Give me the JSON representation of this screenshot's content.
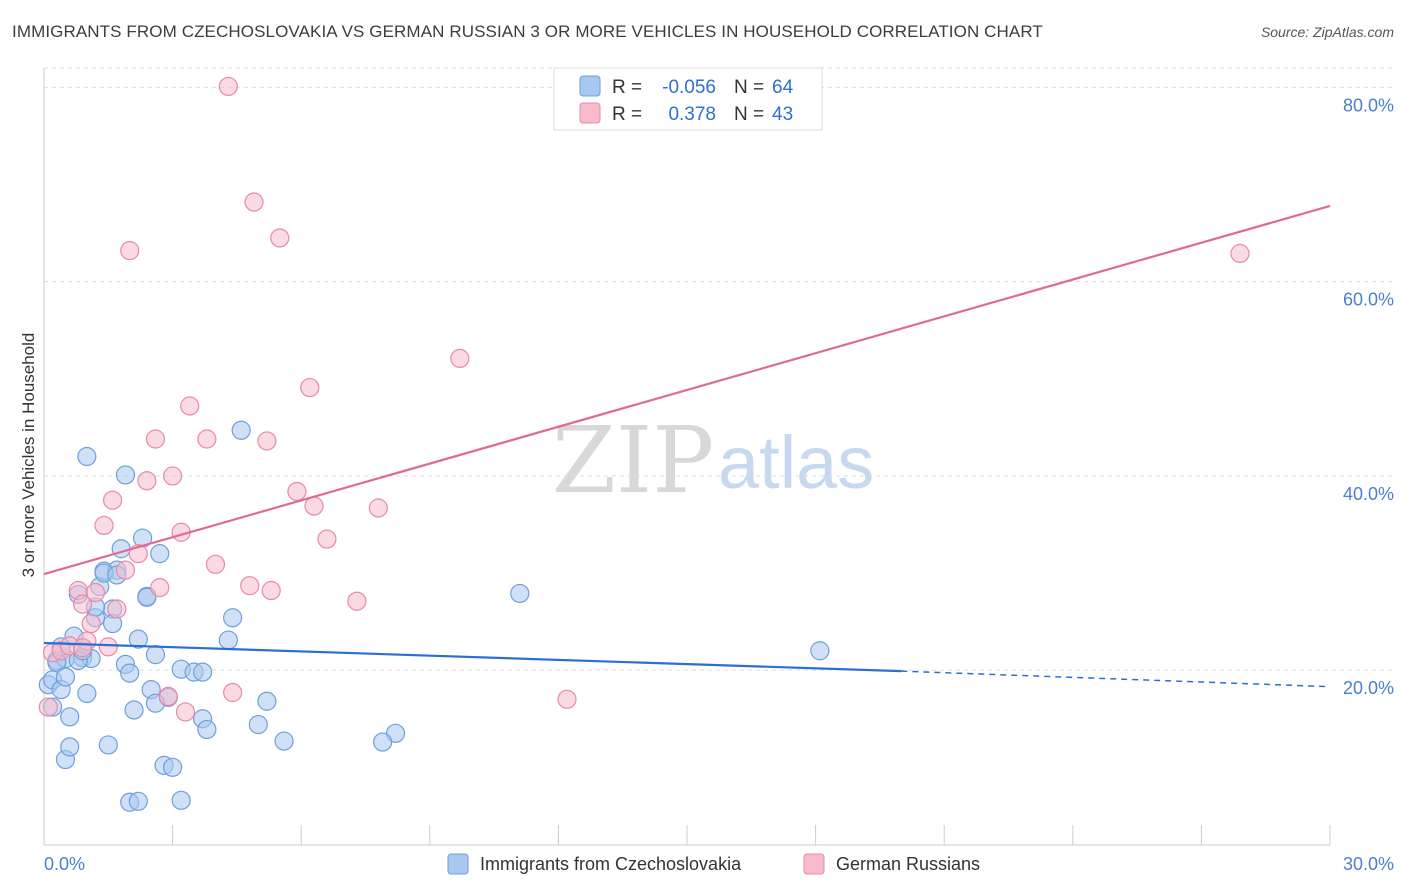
{
  "title": "IMMIGRANTS FROM CZECHOSLOVAKIA VS GERMAN RUSSIAN 3 OR MORE VEHICLES IN HOUSEHOLD CORRELATION CHART",
  "source": "Source: ZipAtlas.com",
  "watermark": {
    "zip": "ZIP",
    "atlas": "atlas"
  },
  "colors": {
    "blue_fill": "#a9c8f0",
    "blue_stroke": "#6e9fdc",
    "blue_line": "#2a6fd4",
    "pink_fill": "#f6bccc",
    "pink_stroke": "#e88aa6",
    "pink_line": "#e06a93",
    "grid": "#dddddd",
    "axis": "#cccccc",
    "tick_label": "#4a7fd1"
  },
  "legend": {
    "rows": [
      {
        "r_label": "R =",
        "r_value": "-0.056",
        "n_label": "N =",
        "n_value": "64"
      },
      {
        "r_label": "R =",
        "r_value": "0.378",
        "n_label": "N =",
        "n_value": "43"
      }
    ]
  },
  "bottom_legend": [
    "Immigrants from Czechoslovakia",
    "German Russians"
  ],
  "chart_data": {
    "type": "scatter",
    "title": "IMMIGRANTS FROM CZECHOSLOVAKIA VS GERMAN RUSSIAN 3 OR MORE VEHICLES IN HOUSEHOLD CORRELATION CHART",
    "xlabel": "",
    "ylabel": "3 or more Vehicles in Household",
    "xlim": [
      0,
      30
    ],
    "ylim": [
      2,
      82
    ],
    "x_tick_labels": [
      {
        "value": 0,
        "label": "0.0%"
      },
      {
        "value": 30,
        "label": "30.0%"
      }
    ],
    "y_ticks": [
      {
        "value": 20,
        "label": "20.0%"
      },
      {
        "value": 40,
        "label": "40.0%"
      },
      {
        "value": 60,
        "label": "60.0%"
      },
      {
        "value": 80,
        "label": "80.0%"
      }
    ],
    "x_minor_ticks": [
      3,
      6,
      9,
      12,
      15,
      18,
      21,
      24,
      27,
      30
    ],
    "series": [
      {
        "name": "Immigrants from Czechoslovakia",
        "color": "#a9c8f0",
        "trend": {
          "x_solid": [
            0,
            20
          ],
          "y_solid": [
            22.8,
            19.9
          ],
          "x_dash": [
            20,
            30
          ],
          "y_dash": [
            19.9,
            18.3
          ]
        },
        "points": [
          [
            0.1,
            18.5
          ],
          [
            0.2,
            19.0
          ],
          [
            0.3,
            21.0
          ],
          [
            0.4,
            18.0
          ],
          [
            0.5,
            21.2
          ],
          [
            0.6,
            15.2
          ],
          [
            0.7,
            23.5
          ],
          [
            0.8,
            27.8
          ],
          [
            0.9,
            21.3
          ],
          [
            1.0,
            17.6
          ],
          [
            1.1,
            21.2
          ],
          [
            1.2,
            25.4
          ],
          [
            1.3,
            28.6
          ],
          [
            1.4,
            30.2
          ],
          [
            1.5,
            12.3
          ],
          [
            1.6,
            26.3
          ],
          [
            1.7,
            30.3
          ],
          [
            1.8,
            32.5
          ],
          [
            1.9,
            20.6
          ],
          [
            2.0,
            19.7
          ],
          [
            2.1,
            15.9
          ],
          [
            2.2,
            23.2
          ],
          [
            2.3,
            33.6
          ],
          [
            2.4,
            27.6
          ],
          [
            2.5,
            18.0
          ],
          [
            2.6,
            21.6
          ],
          [
            2.7,
            32.0
          ],
          [
            2.8,
            10.2
          ],
          [
            2.9,
            17.2
          ],
          [
            3.2,
            20.1
          ],
          [
            3.5,
            19.8
          ],
          [
            3.7,
            15.0
          ],
          [
            3.8,
            13.9
          ],
          [
            4.3,
            23.1
          ],
          [
            4.4,
            25.4
          ],
          [
            4.6,
            44.7
          ],
          [
            5.0,
            14.4
          ],
          [
            5.2,
            16.8
          ],
          [
            5.6,
            12.7
          ],
          [
            8.2,
            13.5
          ],
          [
            11.1,
            27.9
          ],
          [
            18.1,
            22.0
          ],
          [
            0.2,
            16.2
          ],
          [
            0.3,
            20.8
          ],
          [
            0.5,
            10.8
          ],
          [
            0.6,
            12.1
          ],
          [
            1.0,
            42.0
          ],
          [
            1.4,
            30.0
          ],
          [
            1.6,
            24.8
          ],
          [
            1.9,
            40.1
          ],
          [
            2.0,
            6.4
          ],
          [
            2.2,
            6.5
          ],
          [
            2.6,
            16.6
          ],
          [
            3.0,
            10.0
          ],
          [
            3.2,
            6.6
          ],
          [
            1.2,
            26.5
          ],
          [
            0.4,
            22.4
          ],
          [
            0.8,
            21.0
          ],
          [
            2.4,
            27.5
          ],
          [
            1.7,
            29.8
          ],
          [
            3.7,
            19.8
          ],
          [
            7.9,
            12.6
          ],
          [
            0.5,
            19.3
          ],
          [
            0.9,
            22.0
          ]
        ]
      },
      {
        "name": "German Russians",
        "color": "#f6bccc",
        "trend": {
          "x_solid": [
            0,
            30
          ],
          "y_solid": [
            29.9,
            67.8
          ]
        },
        "points": [
          [
            0.1,
            16.2
          ],
          [
            0.2,
            21.8
          ],
          [
            0.4,
            22.0
          ],
          [
            0.6,
            22.5
          ],
          [
            0.8,
            28.2
          ],
          [
            0.9,
            26.8
          ],
          [
            1.0,
            23.0
          ],
          [
            1.1,
            24.8
          ],
          [
            1.2,
            28.0
          ],
          [
            1.4,
            34.9
          ],
          [
            1.5,
            22.4
          ],
          [
            1.6,
            37.5
          ],
          [
            1.7,
            26.3
          ],
          [
            1.9,
            30.3
          ],
          [
            2.0,
            63.2
          ],
          [
            2.2,
            32.0
          ],
          [
            2.4,
            39.5
          ],
          [
            2.6,
            43.8
          ],
          [
            2.7,
            28.5
          ],
          [
            2.9,
            17.3
          ],
          [
            3.0,
            40.0
          ],
          [
            3.2,
            34.2
          ],
          [
            3.3,
            15.7
          ],
          [
            3.4,
            47.2
          ],
          [
            3.8,
            43.8
          ],
          [
            4.0,
            30.9
          ],
          [
            4.3,
            80.1
          ],
          [
            4.4,
            17.7
          ],
          [
            4.8,
            28.7
          ],
          [
            4.9,
            68.2
          ],
          [
            5.2,
            43.6
          ],
          [
            5.3,
            28.2
          ],
          [
            5.5,
            64.5
          ],
          [
            5.9,
            38.4
          ],
          [
            6.2,
            49.1
          ],
          [
            6.3,
            36.9
          ],
          [
            6.6,
            33.5
          ],
          [
            7.3,
            27.1
          ],
          [
            7.8,
            36.7
          ],
          [
            9.7,
            52.1
          ],
          [
            12.2,
            17.0
          ],
          [
            27.9,
            62.9
          ],
          [
            0.9,
            22.3
          ]
        ]
      }
    ]
  }
}
